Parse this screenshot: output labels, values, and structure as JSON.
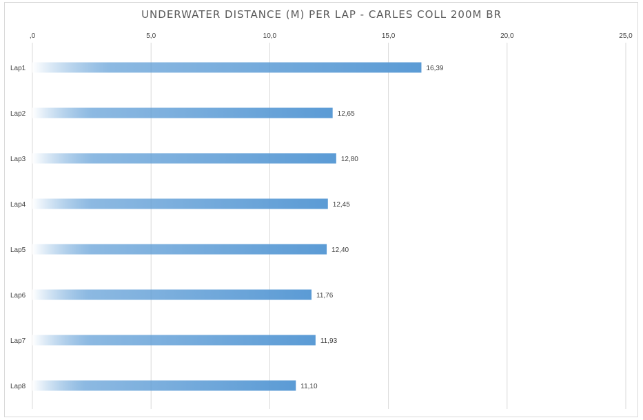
{
  "chart_data": {
    "type": "bar",
    "orientation": "horizontal",
    "title": "UNDERWATER DISTANCE (M) PER LAP - CARLES COLL 200M BR",
    "categories": [
      "Lap1",
      "Lap2",
      "Lap3",
      "Lap4",
      "Lap5",
      "Lap6",
      "Lap7",
      "Lap8"
    ],
    "values": [
      16.39,
      12.65,
      12.8,
      12.45,
      12.4,
      11.76,
      11.93,
      11.1
    ],
    "data_labels": [
      "16,39",
      "12,65",
      "12,80",
      "12,45",
      "12,40",
      "11,76",
      "11,93",
      "11,10"
    ],
    "xlim": [
      0,
      25
    ],
    "x_ticks": [
      0,
      5,
      10,
      15,
      20,
      25
    ],
    "x_tick_labels": [
      ",0",
      "5,0",
      "10,0",
      "15,0",
      "20,0",
      "25,0"
    ],
    "x_axis_position": "top",
    "grid": true,
    "legend": "none",
    "colors": {
      "bar_start": "#ffffff",
      "bar_end": "#5b9bd5",
      "grid": "#d9d9d9",
      "text": "#404040",
      "title": "#595959"
    }
  }
}
